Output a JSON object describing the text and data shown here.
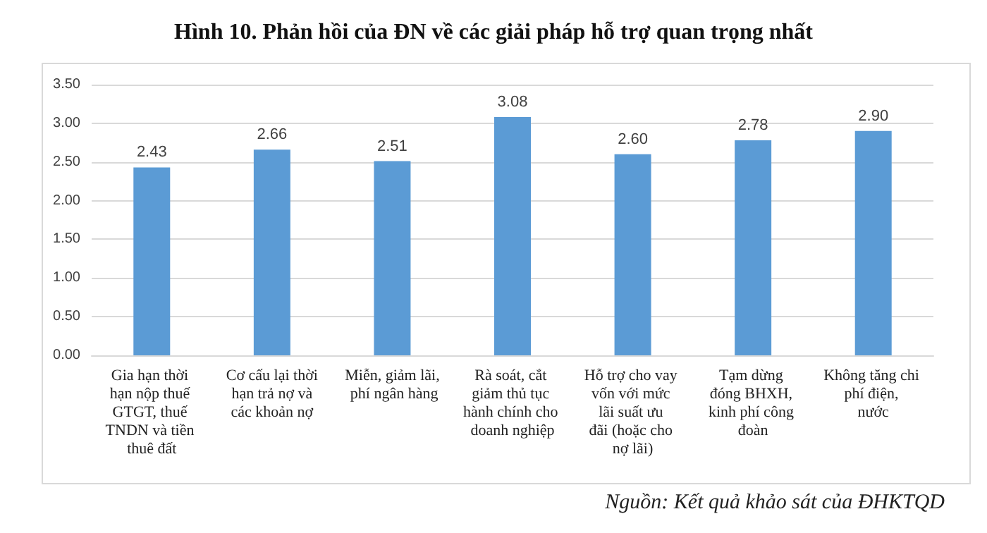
{
  "chart_data": {
    "type": "bar",
    "title": "Hình 10. Phản hồi của ĐN về các giải pháp hỗ trợ quan trọng nhất",
    "categories": [
      "Gia hạn thời hạn nộp thuế GTGT, thuế TNDN và tiền thuê đất",
      "Cơ cấu lại thời hạn trả nợ và các khoản nợ",
      "Miễn, giảm lãi, phí ngân hàng",
      "Rà soát, cắt giảm thủ tục hành chính cho doanh nghiệp",
      "Hỗ trợ cho vay vốn với mức lãi suất ưu đãi (hoặc cho nợ lãi)",
      "Tạm dừng đóng BHXH, kinh phí công đoàn",
      "Không tăng chi phí điện, nước"
    ],
    "values": [
      2.43,
      2.66,
      2.51,
      3.08,
      2.6,
      2.78,
      2.9
    ],
    "value_labels": [
      "2.43",
      "2.66",
      "2.51",
      "3.08",
      "2.60",
      "2.78",
      "2.90"
    ],
    "color": "#5b9bd5",
    "ylim": [
      0,
      3.5
    ],
    "yticks": [
      {
        "value": 0,
        "label": "0.00"
      },
      {
        "value": 0.5,
        "label": "0.50"
      },
      {
        "value": 1,
        "label": "1.00"
      },
      {
        "value": 1.5,
        "label": "1.50"
      },
      {
        "value": 2,
        "label": "2.00"
      },
      {
        "value": 2.5,
        "label": "2.50"
      },
      {
        "value": 3,
        "label": "3.00"
      },
      {
        "value": 3.5,
        "label": "3.50"
      }
    ],
    "grid": true,
    "annotations": [
      "Nguồn: Kết quả khảo sát của ĐHKTQD"
    ]
  }
}
